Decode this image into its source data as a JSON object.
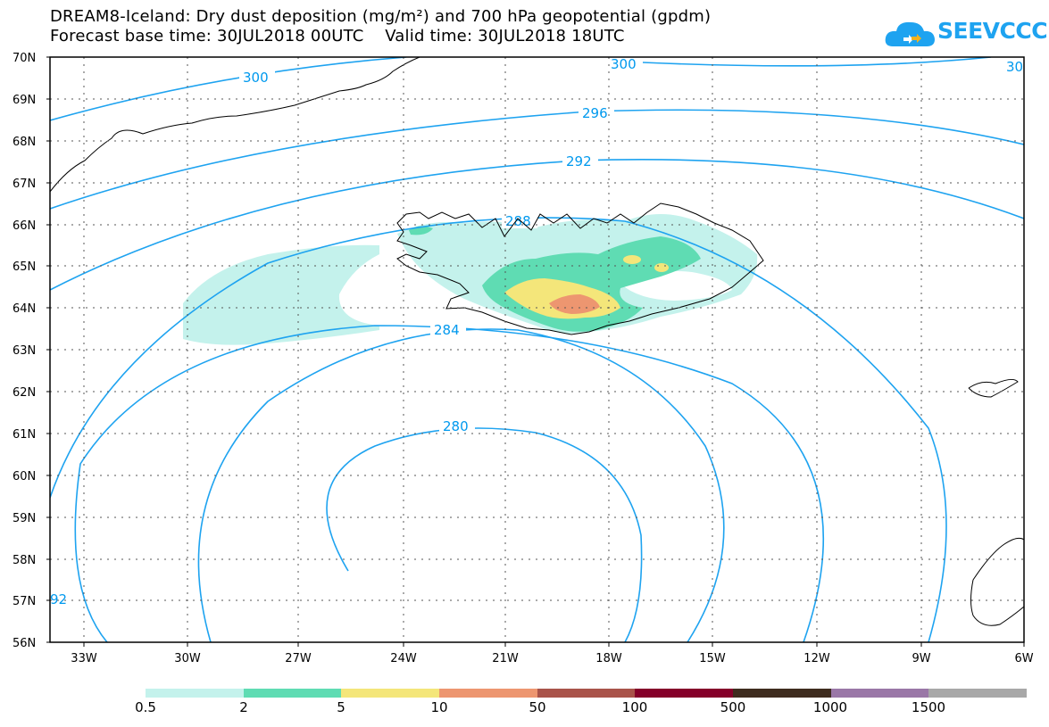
{
  "header": {
    "title": "DREAM8-Iceland: Dry dust deposition (mg/m²) and 700 hPa geopotential (gpdm)",
    "subtitle": "Forecast base time: 30JUL2018 00UTC    Valid time: 30JUL2018 18UTC"
  },
  "logo": {
    "text": "SEEVCCC",
    "color": "#1ea3f0"
  },
  "map": {
    "lat_labels": [
      "70N",
      "69N",
      "68N",
      "67N",
      "66N",
      "65N",
      "64N",
      "63N",
      "62N",
      "61N",
      "60N",
      "59N",
      "58N",
      "57N",
      "56N"
    ],
    "lon_labels": [
      "33W",
      "30W",
      "27W",
      "24W",
      "21W",
      "18W",
      "15W",
      "12W",
      "9W",
      "6W"
    ],
    "contour_color": "#1ea3f0",
    "contour_labels": [
      "300",
      "300",
      "30",
      "296",
      "292",
      "288",
      "284",
      "280",
      "92"
    ],
    "grid": true
  },
  "legend": {
    "labels": [
      "0.5",
      "2",
      "5",
      "10",
      "50",
      "100",
      "500",
      "1000",
      "1500"
    ],
    "colors": [
      "#c4f2ec",
      "#5fdcb3",
      "#f4e67a",
      "#ed9670",
      "#a9534a",
      "#85002a",
      "#3f2c1f",
      "#9a77a7",
      "#a8a8a8"
    ]
  }
}
